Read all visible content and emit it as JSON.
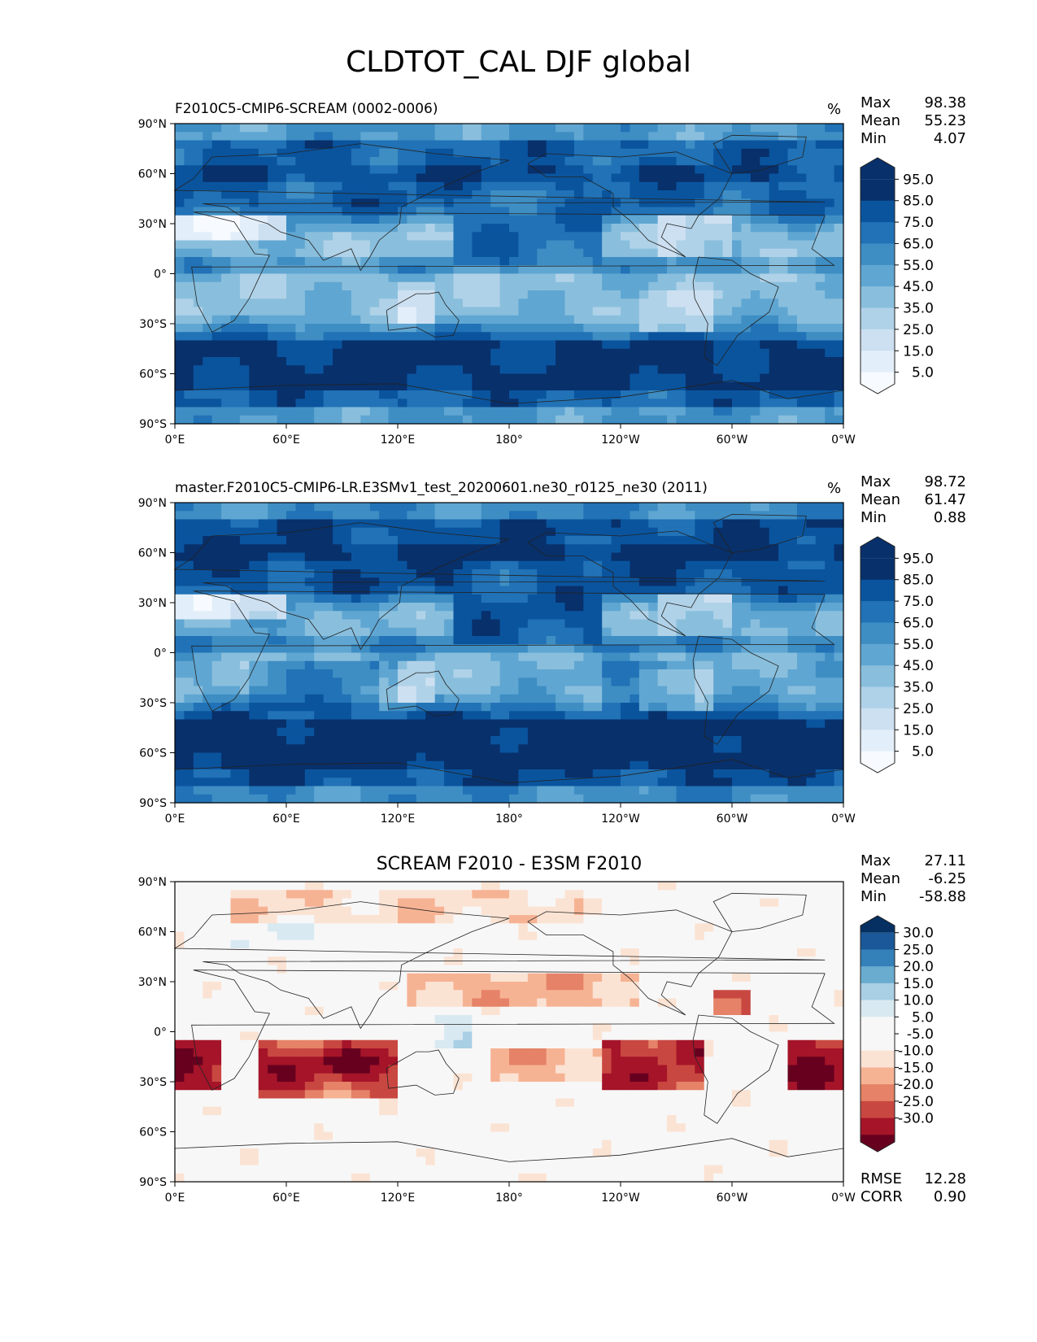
{
  "title": "CLDTOT_CAL DJF global",
  "colors": {
    "blues": [
      "#f7fbff",
      "#e2eef9",
      "#cde0f1",
      "#b0d2e8",
      "#89bfdd",
      "#60a6d2",
      "#3e8ec4",
      "#2172b6",
      "#0a549e",
      "#08306b"
    ],
    "diff": [
      "#67001f",
      "#a51429",
      "#c94741",
      "#e58267",
      "#f6b394",
      "#fbe3d4",
      "#f7f7f7",
      "#f7f7f7",
      "#d9e9f1",
      "#a9cfe5",
      "#6aacd0",
      "#3480b9",
      "#1a5899",
      "#053061"
    ]
  },
  "axes": {
    "x_ticks": [
      "0°E",
      "60°E",
      "120°E",
      "180°",
      "120°W",
      "60°W",
      "0°W"
    ],
    "y_ticks": [
      "90°N",
      "60°N",
      "30°N",
      "0°",
      "30°S",
      "60°S",
      "90°S"
    ]
  },
  "panels": [
    {
      "title": "F2010C5-CMIP6-SCREAM (0002-0006)",
      "units": "%",
      "stats": [
        {
          "label": "Max",
          "value": "98.38"
        },
        {
          "label": "Mean",
          "value": "55.23"
        },
        {
          "label": "Min",
          "value": "4.07"
        }
      ],
      "colorbar": [
        "95.0",
        "85.0",
        "75.0",
        "65.0",
        "55.0",
        "45.0",
        "35.0",
        "25.0",
        "15.0",
        "5.0"
      ]
    },
    {
      "title": "master.F2010C5-CMIP6-LR.E3SMv1_test_20200601.ne30_r0125_ne30 (2011)",
      "units": "%",
      "stats": [
        {
          "label": "Max",
          "value": "98.72"
        },
        {
          "label": "Mean",
          "value": "61.47"
        },
        {
          "label": "Min",
          "value": "0.88"
        }
      ],
      "colorbar": [
        "95.0",
        "85.0",
        "75.0",
        "65.0",
        "55.0",
        "45.0",
        "35.0",
        "25.0",
        "15.0",
        "5.0"
      ]
    },
    {
      "title": "SCREAM F2010 - E3SM F2010",
      "units": "",
      "stats": [
        {
          "label": "Max",
          "value": "27.11"
        },
        {
          "label": "Mean",
          "value": "-6.25"
        },
        {
          "label": "Min",
          "value": "-58.88"
        }
      ],
      "colorbar": [
        "30.0",
        "25.0",
        "20.0",
        "15.0",
        "10.0",
        "5.0",
        "-5.0",
        "-10.0",
        "-15.0",
        "-20.0",
        "-25.0",
        "-30.0"
      ],
      "extra_stats": [
        {
          "label": "RMSE",
          "value": "12.28"
        },
        {
          "label": "CORR",
          "value": "0.90"
        }
      ]
    }
  ],
  "chart_data": [
    {
      "type": "heatmap",
      "title": "F2010C5-CMIP6-SCREAM (0002-0006)",
      "units": "%",
      "x_range": [
        0,
        360
      ],
      "y_range": [
        -90,
        90
      ],
      "levels": [
        5,
        15,
        25,
        35,
        45,
        55,
        65,
        75,
        85,
        95
      ],
      "zonal_profile": {
        "lat": [
          80,
          60,
          40,
          20,
          0,
          -20,
          -40,
          -60,
          -80
        ],
        "value": [
          85,
          75,
          85,
          35,
          55,
          40,
          85,
          92,
          55
        ]
      }
    },
    {
      "type": "heatmap",
      "title": "master.F2010C5-CMIP6-LR.E3SMv1_test_20200601.ne30_r0125_ne30 (2011)",
      "units": "%",
      "x_range": [
        0,
        360
      ],
      "y_range": [
        -90,
        90
      ],
      "levels": [
        5,
        15,
        25,
        35,
        45,
        55,
        65,
        75,
        85,
        95
      ],
      "zonal_profile": {
        "lat": [
          80,
          60,
          40,
          20,
          0,
          -20,
          -40,
          -60,
          -80
        ],
        "value": [
          85,
          75,
          85,
          45,
          60,
          55,
          90,
          95,
          55
        ]
      }
    },
    {
      "type": "heatmap",
      "title": "SCREAM F2010 - E3SM F2010",
      "x_range": [
        0,
        360
      ],
      "y_range": [
        -90,
        90
      ],
      "levels": [
        -30,
        -25,
        -20,
        -15,
        -10,
        -5,
        5,
        10,
        15,
        20,
        25,
        30
      ],
      "zonal_profile": {
        "lat": [
          80,
          60,
          40,
          20,
          0,
          -20,
          -40,
          -60,
          -80
        ],
        "value": [
          -2,
          0,
          -5,
          -8,
          -5,
          -20,
          -8,
          -2,
          -2
        ]
      }
    }
  ]
}
